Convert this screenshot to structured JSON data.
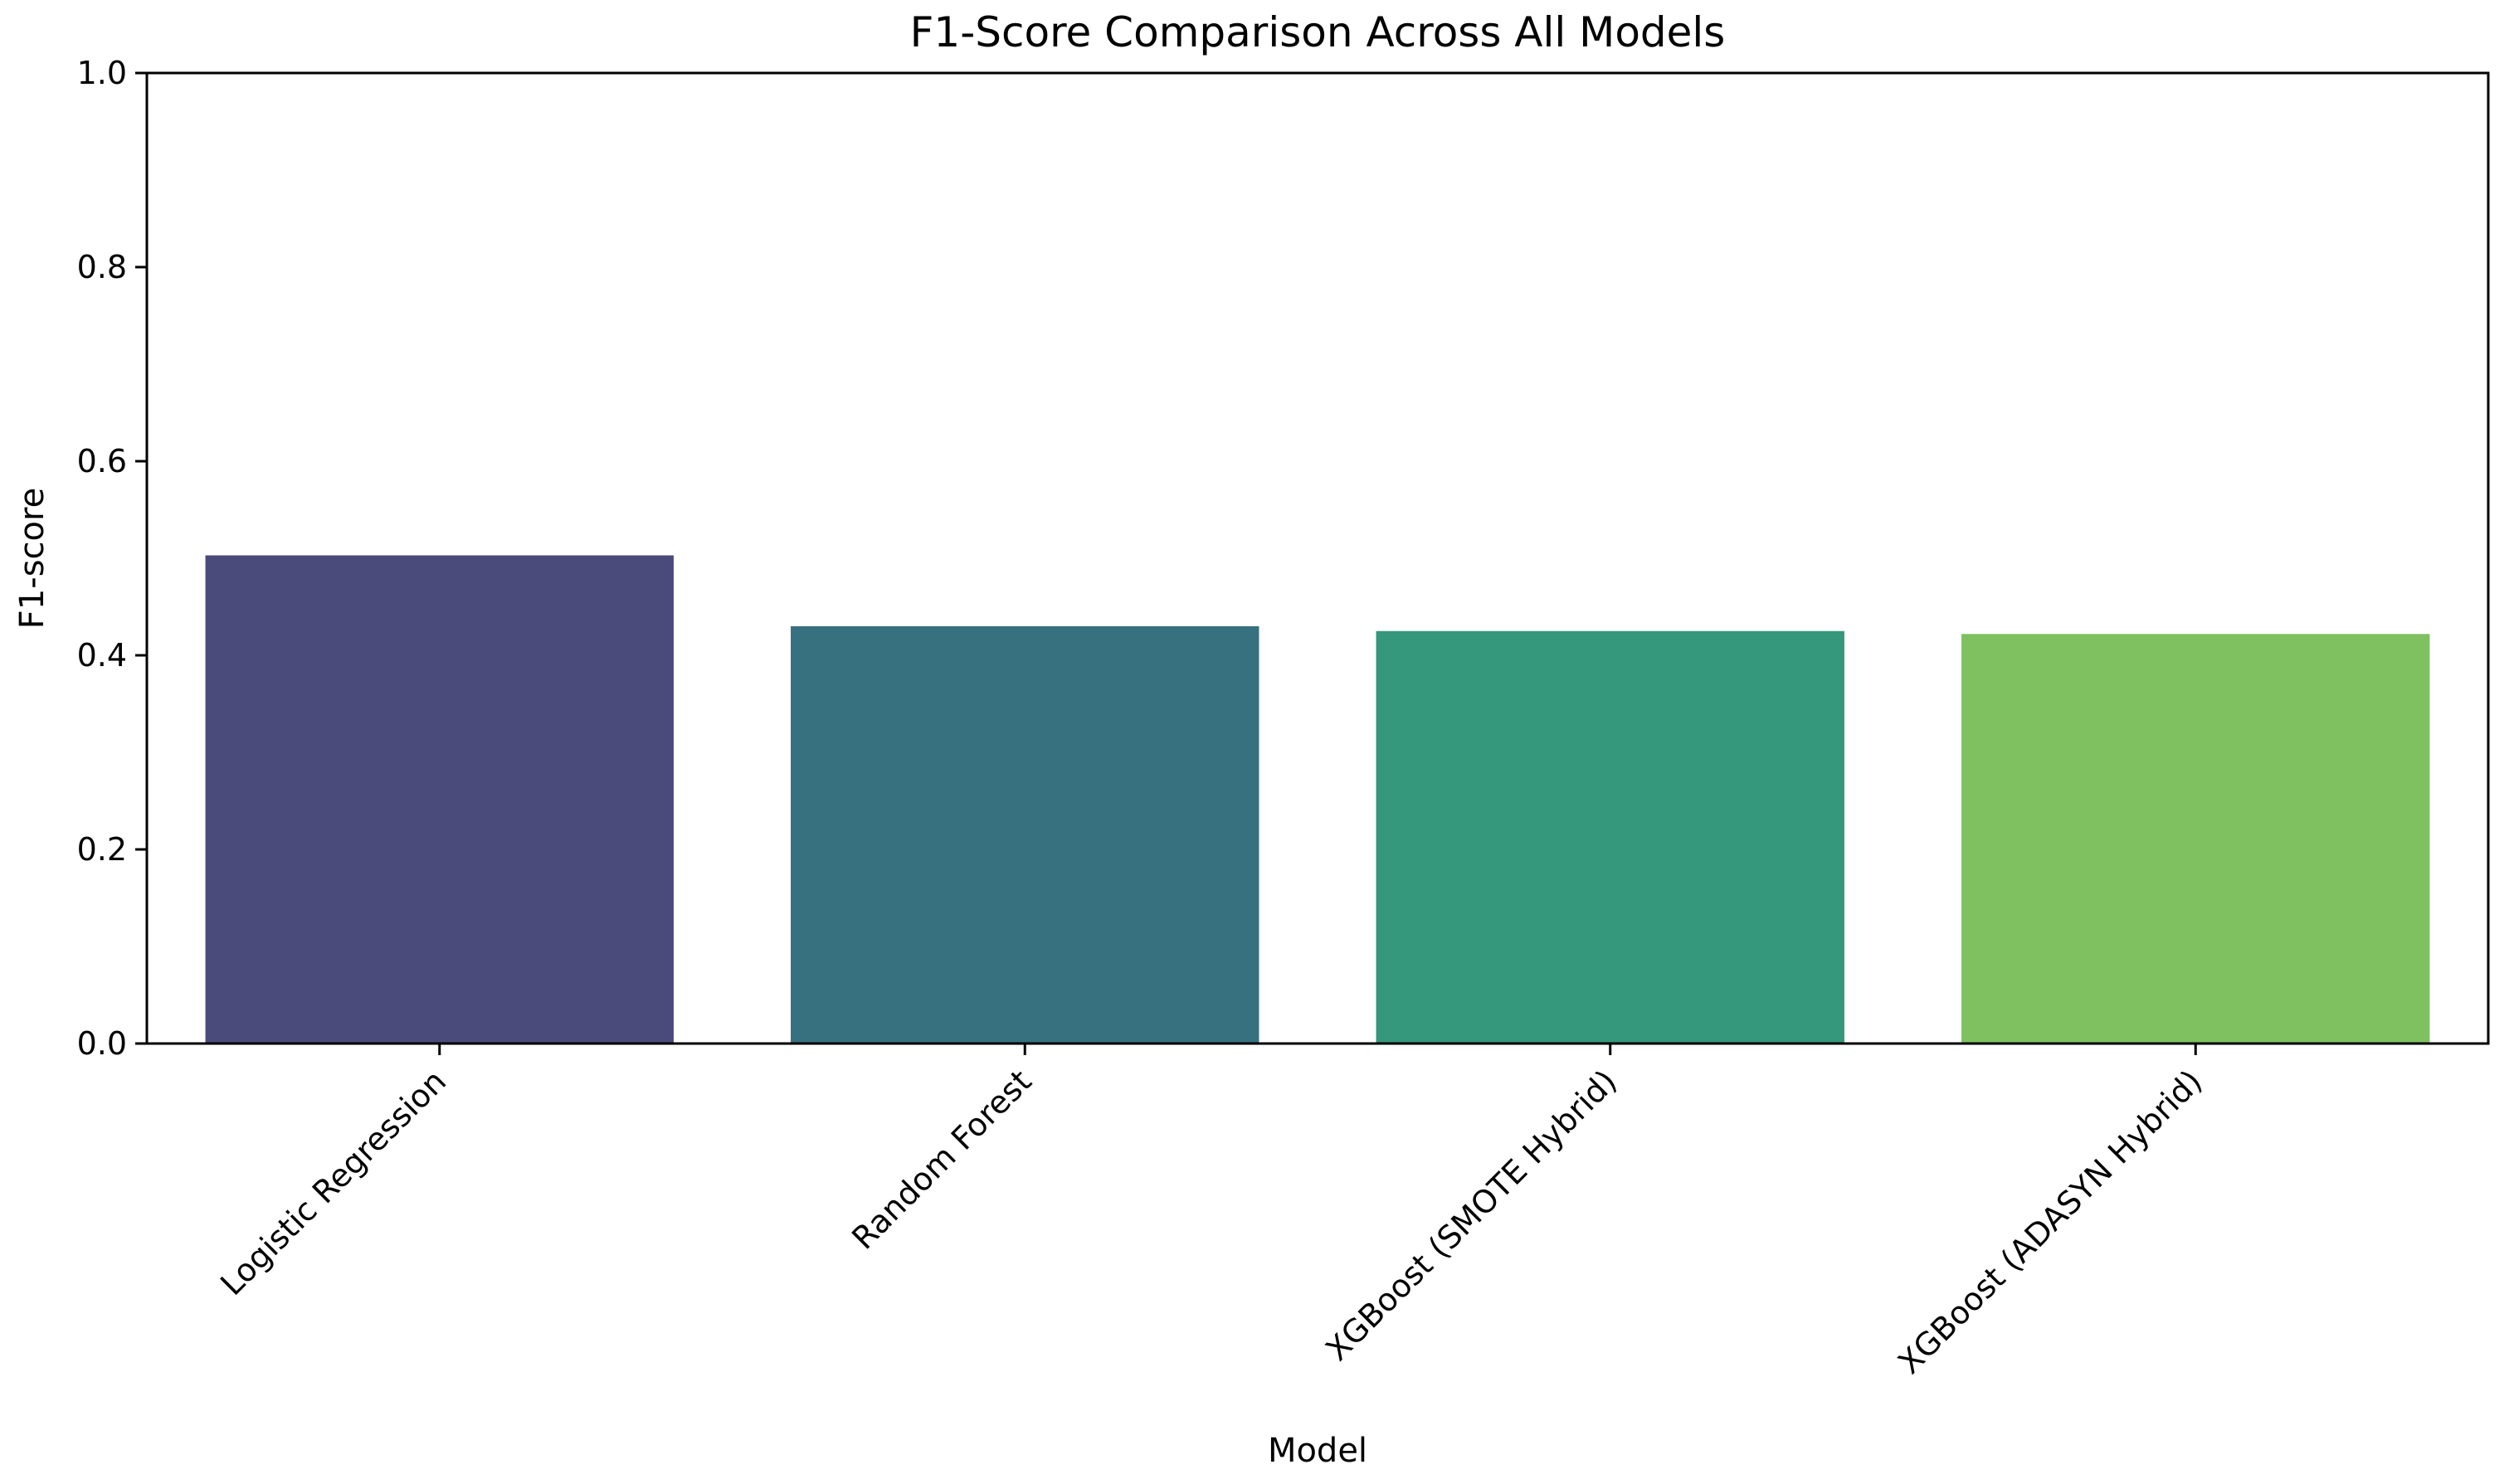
{
  "chart_data": {
    "type": "bar",
    "title": "F1-Score Comparison Across All Models",
    "xlabel": "Model",
    "ylabel": "F1-score",
    "categories": [
      "Logistic Regression",
      "Random Forest",
      "XGBoost (SMOTE Hybrid)",
      "XGBoost (ADASYN Hybrid)"
    ],
    "values": [
      0.503,
      0.43,
      0.425,
      0.422
    ],
    "colors": [
      "#4a4b7b",
      "#37707f",
      "#35977b",
      "#7fc160"
    ],
    "ylim": [
      0,
      1.0
    ],
    "yticks": [
      "0.0",
      "0.2",
      "0.4",
      "0.6",
      "0.8",
      "1.0"
    ],
    "grid": false,
    "legend": "none"
  }
}
